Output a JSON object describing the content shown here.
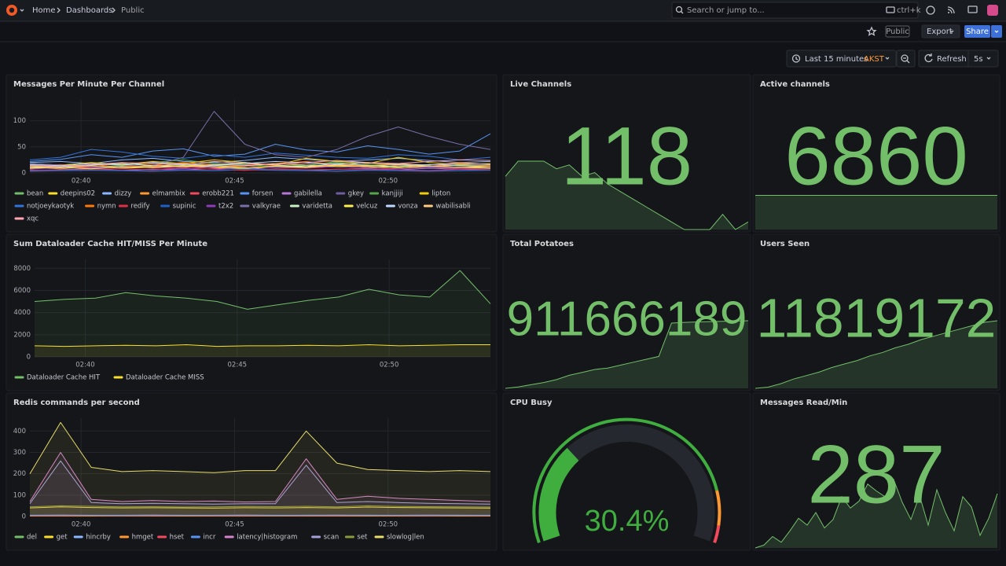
{
  "header": {
    "breadcrumbs": [
      "Home",
      "Dashboards",
      "Public"
    ],
    "search_placeholder": "Search or jump to...",
    "search_shortcut": "ctrl+k"
  },
  "toolbar": {
    "tag": "Public",
    "export": "Export",
    "share": "Share"
  },
  "time_controls": {
    "range": "Last 15 minutes",
    "timezone": "AKST",
    "refresh": "Refresh",
    "interval": "5s"
  },
  "panels": [
    {
      "type": "timeseries",
      "title": "Messages Per Minute Per Channel",
      "x": [
        "02:38:20",
        "02:39:20",
        "02:40:20",
        "02:41:20",
        "02:42:20",
        "02:43:20",
        "02:44:20",
        "02:45:20",
        "02:46:20",
        "02:47:20",
        "02:48:20",
        "02:49:20",
        "02:50:20",
        "02:51:20",
        "02:52:20",
        "02:53:20"
      ],
      "xlim": [
        "02:38:20",
        "02:53:20"
      ],
      "xticks": [
        "02:40",
        "02:45",
        "02:50"
      ],
      "ylim": [
        0,
        140
      ],
      "yticks": [
        0,
        50,
        100
      ],
      "grid": true,
      "fill": false,
      "series": [
        {
          "name": "bean",
          "color": "#73bf69",
          "values": [
            12,
            14,
            10,
            15,
            12,
            18,
            14,
            16,
            12,
            15,
            20,
            14,
            12,
            16,
            14,
            12
          ]
        },
        {
          "name": "deepins02",
          "color": "#fade2a",
          "values": [
            8,
            10,
            12,
            9,
            11,
            14,
            10,
            12,
            18,
            15,
            12,
            10,
            14,
            11,
            9,
            10
          ]
        },
        {
          "name": "dizzy",
          "color": "#8ab8ff",
          "values": [
            20,
            22,
            18,
            25,
            28,
            22,
            20,
            24,
            30,
            26,
            22,
            25,
            28,
            24,
            20,
            22
          ]
        },
        {
          "name": "elmambix",
          "color": "#ff9830",
          "values": [
            10,
            8,
            12,
            10,
            15,
            12,
            10,
            8,
            12,
            10,
            14,
            12,
            10,
            12,
            15,
            14
          ]
        },
        {
          "name": "erobb221",
          "color": "#f2495c",
          "values": [
            15,
            12,
            10,
            14,
            12,
            10,
            15,
            18,
            14,
            12,
            16,
            20,
            14,
            12,
            18,
            16
          ]
        },
        {
          "name": "forsen",
          "color": "#5794f2",
          "values": [
            22,
            26,
            35,
            30,
            42,
            46,
            32,
            36,
            55,
            44,
            40,
            52,
            45,
            36,
            42,
            75
          ]
        },
        {
          "name": "gabilella",
          "color": "#b877d9",
          "values": [
            5,
            6,
            8,
            5,
            7,
            6,
            8,
            10,
            6,
            5,
            7,
            8,
            6,
            9,
            7,
            6
          ]
        },
        {
          "name": "gkey",
          "color": "#705da0",
          "values": [
            3,
            4,
            5,
            4,
            3,
            5,
            4,
            6,
            5,
            4,
            3,
            5,
            4,
            3,
            4,
            5
          ]
        },
        {
          "name": "kanjjiji",
          "color": "#56a64b",
          "values": [
            10,
            12,
            8,
            14,
            20,
            25,
            18,
            15,
            12,
            14,
            22,
            18,
            15,
            12,
            10,
            12
          ]
        },
        {
          "name": "lipton",
          "color": "#f2cc0c",
          "values": [
            18,
            15,
            20,
            16,
            22,
            18,
            25,
            20,
            15,
            28,
            22,
            18,
            30,
            20,
            16,
            18
          ]
        },
        {
          "name": "notjoeykaotyk",
          "color": "#3274d9",
          "values": [
            25,
            30,
            45,
            40,
            32,
            28,
            35,
            30,
            38,
            34,
            30,
            28,
            35,
            32,
            25,
            30
          ]
        },
        {
          "name": "nymn",
          "color": "#ff780a",
          "values": [
            14,
            16,
            12,
            18,
            15,
            20,
            16,
            14,
            18,
            22,
            16,
            14,
            18,
            15,
            20,
            16
          ]
        },
        {
          "name": "redify",
          "color": "#e02f44",
          "values": [
            6,
            5,
            7,
            8,
            6,
            9,
            7,
            5,
            8,
            6,
            7,
            9,
            6,
            5,
            7,
            8
          ]
        },
        {
          "name": "supinic",
          "color": "#1f60c4",
          "values": [
            4,
            5,
            6,
            5,
            4,
            6,
            5,
            7,
            6,
            5,
            4,
            6,
            5,
            4,
            5,
            6
          ]
        },
        {
          "name": "t2x2",
          "color": "#8f3bb8",
          "values": [
            8,
            10,
            9,
            12,
            10,
            8,
            11,
            13,
            10,
            9,
            12,
            10,
            8,
            11,
            9,
            10
          ]
        },
        {
          "name": "valkyrae",
          "color": "#7b6fa8",
          "values": [
            18,
            15,
            12,
            10,
            14,
            30,
            118,
            55,
            35,
            30,
            45,
            70,
            88,
            70,
            55,
            45
          ]
        },
        {
          "name": "varidetta",
          "color": "#c8f2c2",
          "values": [
            12,
            10,
            15,
            18,
            14,
            12,
            16,
            20,
            15,
            12,
            18,
            15,
            12,
            16,
            14,
            12
          ]
        },
        {
          "name": "velcuz",
          "color": "#ffee52",
          "values": [
            9,
            11,
            8,
            12,
            10,
            14,
            12,
            9,
            13,
            11,
            15,
            12,
            10,
            13,
            11,
            9
          ]
        },
        {
          "name": "vonza",
          "color": "#c0d8ff",
          "values": [
            16,
            14,
            18,
            15,
            20,
            17,
            14,
            18,
            22,
            19,
            16,
            20,
            17,
            15,
            18,
            16
          ]
        },
        {
          "name": "wabilisabli",
          "color": "#ffcb7d",
          "values": [
            10,
            12,
            14,
            11,
            13,
            16,
            12,
            14,
            18,
            15,
            12,
            14,
            16,
            13,
            11,
            12
          ]
        },
        {
          "name": "xqc",
          "color": "#ffa6b0",
          "values": [
            14,
            12,
            16,
            20,
            18,
            15,
            22,
            18,
            16,
            20,
            24,
            20,
            18,
            22,
            25,
            24
          ]
        }
      ]
    },
    {
      "type": "stat",
      "title": "Live Channels",
      "value": 118,
      "color": "#73bf69",
      "sparkline": [
        122,
        126,
        126,
        126,
        124,
        125,
        122,
        123,
        120,
        118,
        116,
        114,
        112,
        110,
        108,
        108,
        108,
        112,
        108,
        110
      ]
    },
    {
      "type": "stat",
      "title": "Active channels",
      "value": 6860,
      "color": "#73bf69",
      "sparkline": [
        6860,
        6860,
        6860,
        6860,
        6860,
        6860,
        6860,
        6860,
        6860,
        6860,
        6860,
        6860
      ]
    },
    {
      "type": "timeseries",
      "title": "Sum Dataloader Cache HIT/MISS Per Minute",
      "x": [
        "02:38:20",
        "02:39:20",
        "02:40:20",
        "02:41:20",
        "02:42:20",
        "02:43:20",
        "02:44:20",
        "02:45:20",
        "02:46:20",
        "02:47:20",
        "02:48:20",
        "02:49:20",
        "02:50:20",
        "02:51:20",
        "02:52:20",
        "02:53:20"
      ],
      "xlim": [
        "02:38:20",
        "02:53:20"
      ],
      "xticks": [
        "02:40",
        "02:45",
        "02:50"
      ],
      "ylim": [
        0,
        8800
      ],
      "yticks": [
        0,
        2000,
        4000,
        6000,
        8000
      ],
      "grid": true,
      "fill": true,
      "series": [
        {
          "name": "Dataloader Cache HIT",
          "color": "#73bf69",
          "values": [
            5000,
            5200,
            5300,
            5800,
            5500,
            5300,
            5000,
            4300,
            4700,
            5100,
            5400,
            6100,
            5600,
            5400,
            7800,
            4800
          ]
        },
        {
          "name": "Dataloader Cache MISS",
          "color": "#fade2a",
          "values": [
            1000,
            950,
            1000,
            1050,
            1000,
            1100,
            950,
            1000,
            1000,
            1050,
            1000,
            1100,
            1000,
            1050,
            1100,
            1100
          ]
        }
      ]
    },
    {
      "type": "stat",
      "title": "Total Potatoes",
      "value": 911666189,
      "color": "#73bf69",
      "sparkline": [
        911200000,
        911210000,
        911225000,
        911240000,
        911260000,
        911290000,
        911310000,
        911330000,
        911340000,
        911360000,
        911380000,
        911400000,
        911420000,
        911650000,
        911655000,
        911658000,
        911660000,
        911662000,
        911664000,
        911666189
      ]
    },
    {
      "type": "stat",
      "title": "Users Seen",
      "value": 11819172,
      "color": "#73bf69",
      "sparkline": [
        11790000,
        11790500,
        11792000,
        11794000,
        11795500,
        11797000,
        11799000,
        11800500,
        11802000,
        11804000,
        11805500,
        11807500,
        11809000,
        11811000,
        11812500,
        11814000,
        11815500,
        11817000,
        11818500,
        11819172
      ]
    },
    {
      "type": "timeseries",
      "title": "Redis commands per second",
      "x": [
        "02:38:20",
        "02:39:20",
        "02:40:20",
        "02:41:20",
        "02:42:20",
        "02:43:20",
        "02:44:20",
        "02:45:20",
        "02:46:20",
        "02:47:20",
        "02:48:20",
        "02:49:20",
        "02:50:20",
        "02:51:20",
        "02:52:20",
        "02:53:20"
      ],
      "xlim": [
        "02:38:20",
        "02:53:20"
      ],
      "xticks": [
        "02:40",
        "02:45",
        "02:50"
      ],
      "ylim": [
        0,
        460
      ],
      "yticks": [
        0,
        100,
        200,
        300,
        400
      ],
      "grid": true,
      "fill": true,
      "series": [
        {
          "name": "del",
          "color": "#73bf69",
          "values": [
            5,
            6,
            5,
            5,
            6,
            5,
            5,
            6,
            5,
            6,
            5,
            6,
            5,
            5,
            6,
            5
          ]
        },
        {
          "name": "get",
          "color": "#fade2a",
          "values": [
            40,
            45,
            42,
            40,
            41,
            40,
            39,
            41,
            40,
            42,
            40,
            44,
            42,
            41,
            40,
            39
          ]
        },
        {
          "name": "hincrby",
          "color": "#8ab8ff",
          "values": [
            3,
            3,
            4,
            3,
            3,
            3,
            4,
            3,
            3,
            3,
            4,
            3,
            3,
            3,
            4,
            3
          ]
        },
        {
          "name": "hmget",
          "color": "#ff9830",
          "values": [
            2,
            2,
            2,
            3,
            2,
            2,
            2,
            2,
            3,
            2,
            2,
            2,
            2,
            3,
            2,
            2
          ]
        },
        {
          "name": "hset",
          "color": "#f2495c",
          "values": [
            4,
            4,
            5,
            4,
            4,
            5,
            4,
            4,
            5,
            4,
            4,
            5,
            4,
            4,
            5,
            4
          ]
        },
        {
          "name": "incr",
          "color": "#5794f2",
          "values": [
            6,
            7,
            6,
            6,
            7,
            6,
            6,
            7,
            6,
            6,
            7,
            6,
            6,
            7,
            6,
            6
          ]
        },
        {
          "name": "latency|histogram",
          "color": "#d683ce",
          "values": [
            70,
            300,
            80,
            70,
            75,
            70,
            72,
            68,
            70,
            270,
            80,
            95,
            85,
            80,
            75,
            70
          ]
        },
        {
          "name": "scan",
          "color": "#a5a0d8",
          "values": [
            60,
            260,
            65,
            60,
            62,
            60,
            58,
            60,
            60,
            240,
            65,
            70,
            65,
            62,
            60,
            58
          ]
        },
        {
          "name": "set",
          "color": "#8a9a3c",
          "values": [
            45,
            50,
            48,
            45,
            46,
            44,
            45,
            47,
            46,
            48,
            45,
            50,
            47,
            46,
            45,
            44
          ]
        },
        {
          "name": "slowlog|len",
          "color": "#e8dc6a",
          "values": [
            200,
            440,
            230,
            210,
            215,
            210,
            205,
            215,
            215,
            400,
            250,
            220,
            215,
            210,
            215,
            210
          ]
        }
      ]
    },
    {
      "type": "gauge",
      "title": "CPU Busy",
      "value": 30.4,
      "value_label": "30.4%",
      "min": 0,
      "max": 100,
      "thresholds": [
        {
          "value": 0,
          "color": "#3fae3f"
        },
        {
          "value": 85,
          "color": "#ff9830"
        },
        {
          "value": 95,
          "color": "#f2495c"
        }
      ]
    },
    {
      "type": "stat",
      "title": "Messages Read/Min",
      "value": 287,
      "color": "#73bf69",
      "sparkline": [
        210,
        215,
        230,
        220,
        240,
        262,
        250,
        272,
        245,
        260,
        300,
        280,
        292,
        322,
        310,
        300,
        330,
        290,
        260,
        302,
        250,
        312,
        272,
        240,
        300,
        282,
        232,
        262,
        305
      ]
    }
  ]
}
